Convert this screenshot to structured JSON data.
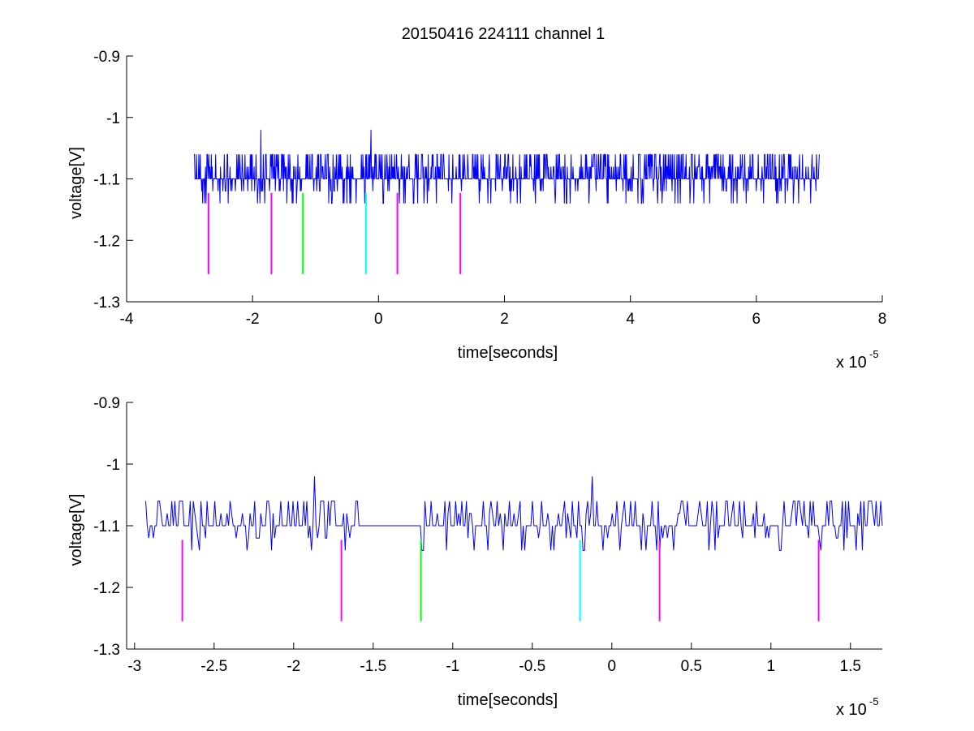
{
  "figure_title": "20150416 224111 channel 1",
  "chart_data": [
    {
      "type": "line",
      "panel": "top",
      "title": "20150416 224111 channel 1",
      "xlabel": "time[seconds]",
      "ylabel": "voltage[V]",
      "x_multiplier": "x 10",
      "x_multiplier_exp": "-5",
      "xlim": [
        -4,
        8
      ],
      "ylim": [
        -1.3,
        -0.9
      ],
      "xticks": [
        -4,
        -2,
        0,
        2,
        4,
        6,
        8
      ],
      "xtick_labels": [
        "-4",
        "-2",
        "0",
        "2",
        "4",
        "6",
        "8"
      ],
      "yticks": [
        -0.9,
        -1,
        -1.1,
        -1.2,
        -1.3
      ],
      "ytick_labels": [
        "-0.9",
        "-1",
        "-1.1",
        "-1.2",
        "-1.3"
      ],
      "grid": false,
      "series": [
        {
          "color": "#0000ff",
          "x_range": [
            -2.93,
            7.0
          ],
          "baseline": -1.1,
          "levels": [
            -1.14,
            -1.12,
            -1.1,
            -1.08,
            -1.06,
            -1.02
          ],
          "points_approx": 1300,
          "spikes": [
            {
              "x": -1.87,
              "y": -1.02
            },
            {
              "x": -0.12,
              "y": -1.02
            }
          ]
        }
      ],
      "markers": [
        {
          "x": -2.7,
          "y_top": -1.123,
          "y_bottom": -1.255,
          "color": "#ff00ff"
        },
        {
          "x": -1.7,
          "y_top": -1.123,
          "y_bottom": -1.255,
          "color": "#ff00ff"
        },
        {
          "x": -1.2,
          "y_top": -1.123,
          "y_bottom": -1.255,
          "color": "#00ff00"
        },
        {
          "x": -0.2,
          "y_top": -1.123,
          "y_bottom": -1.255,
          "color": "#00ffff"
        },
        {
          "x": 0.3,
          "y_top": -1.123,
          "y_bottom": -1.255,
          "color": "#ff00ff"
        },
        {
          "x": 1.3,
          "y_top": -1.123,
          "y_bottom": -1.255,
          "color": "#ff00ff"
        }
      ]
    },
    {
      "type": "line",
      "panel": "bottom",
      "xlabel": "time[seconds]",
      "ylabel": "voltage[V]",
      "x_multiplier": "x 10",
      "x_multiplier_exp": "-5",
      "xlim": [
        -3.05,
        1.7
      ],
      "ylim": [
        -1.3,
        -0.9
      ],
      "xticks": [
        -3,
        -2.5,
        -2,
        -1.5,
        -1,
        -0.5,
        0,
        0.5,
        1,
        1.5
      ],
      "xtick_labels": [
        "-3",
        "-2.5",
        "-2",
        "-1.5",
        "-1",
        "-0.5",
        "0",
        "0.5",
        "1",
        "1.5"
      ],
      "yticks": [
        -0.9,
        -1,
        -1.1,
        -1.2,
        -1.3
      ],
      "ytick_labels": [
        "-0.9",
        "-1",
        "-1.1",
        "-1.2",
        "-1.3"
      ],
      "grid": false,
      "series": [
        {
          "color": "#0000ff",
          "x_range": [
            -2.93,
            1.7
          ],
          "baseline": -1.1,
          "levels": [
            -1.14,
            -1.12,
            -1.1,
            -1.08,
            -1.06,
            -1.02
          ],
          "points_approx": 480,
          "flat_gaps": [
            [
              -1.57,
              -1.2
            ]
          ],
          "spikes": [
            {
              "x": -1.87,
              "y": -1.02
            },
            {
              "x": -0.12,
              "y": -1.02
            }
          ]
        }
      ],
      "markers": [
        {
          "x": -2.7,
          "y_top": -1.123,
          "y_bottom": -1.255,
          "color": "#ff00ff"
        },
        {
          "x": -1.7,
          "y_top": -1.123,
          "y_bottom": -1.255,
          "color": "#ff00ff"
        },
        {
          "x": -1.2,
          "y_top": -1.123,
          "y_bottom": -1.255,
          "color": "#00ff00"
        },
        {
          "x": -0.2,
          "y_top": -1.123,
          "y_bottom": -1.255,
          "color": "#00ffff"
        },
        {
          "x": 0.3,
          "y_top": -1.123,
          "y_bottom": -1.255,
          "color": "#ff00ff"
        },
        {
          "x": 1.3,
          "y_top": -1.123,
          "y_bottom": -1.255,
          "color": "#ff00ff"
        }
      ]
    }
  ]
}
